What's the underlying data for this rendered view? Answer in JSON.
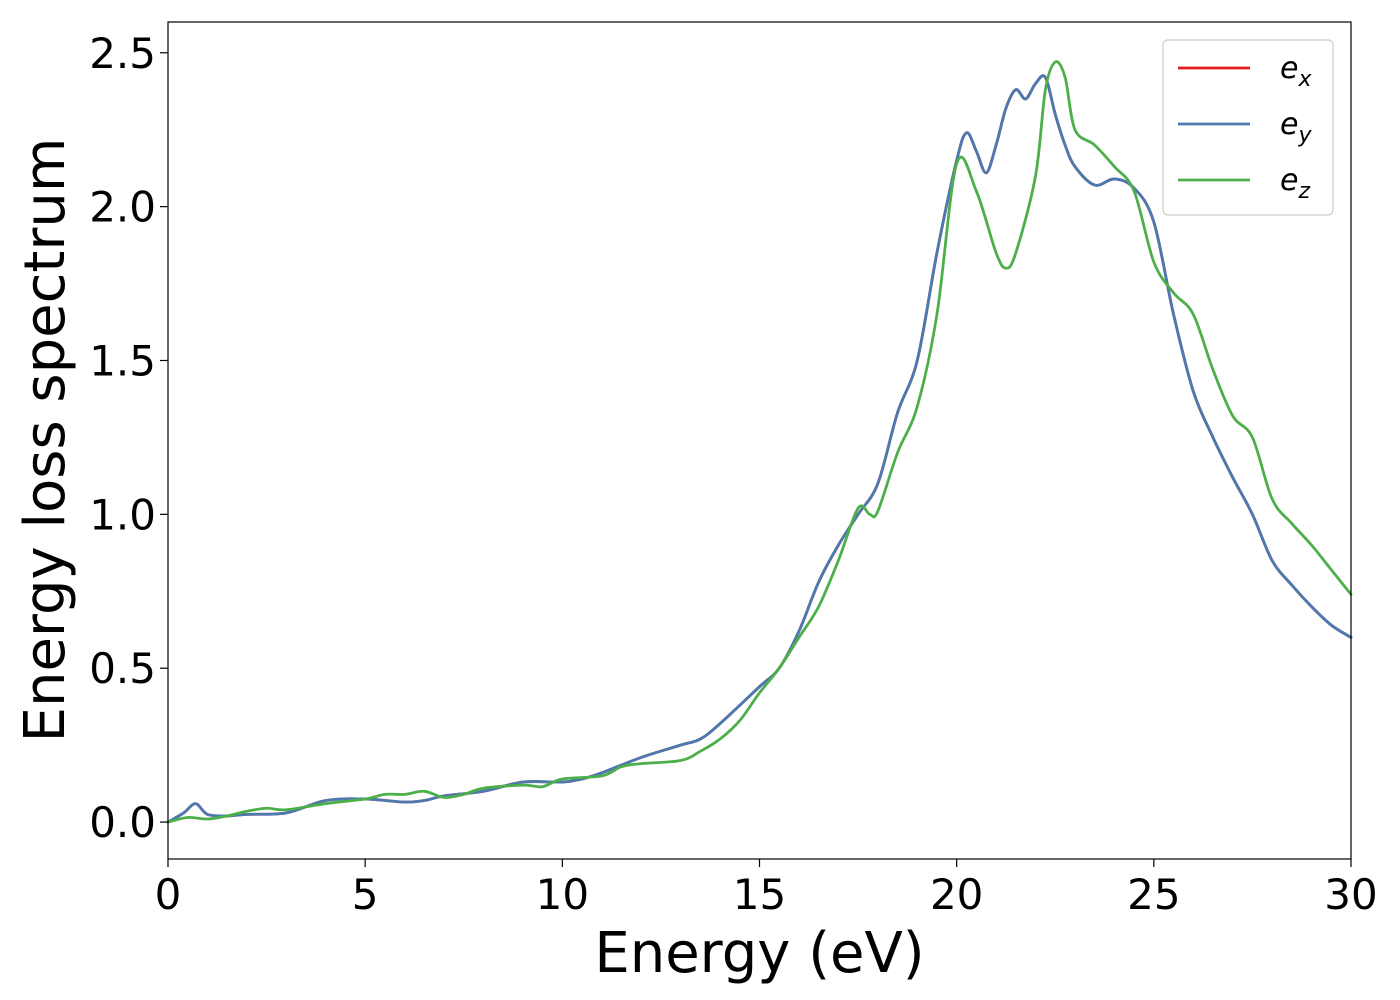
{
  "chart_data": {
    "type": "line",
    "title": "",
    "xlabel": "Energy (eV)",
    "ylabel": "Energy loss spectrum",
    "xlim": [
      0,
      30
    ],
    "ylim": [
      -0.12,
      2.6
    ],
    "xticks": [
      0,
      5,
      10,
      15,
      20,
      25,
      30
    ],
    "xtick_labels": [
      "0",
      "5",
      "10",
      "15",
      "20",
      "25",
      "30"
    ],
    "yticks": [
      0.0,
      0.5,
      1.0,
      1.5,
      2.0,
      2.5
    ],
    "ytick_labels": [
      "0.0",
      "0.5",
      "1.0",
      "1.5",
      "2.0",
      "2.5"
    ],
    "grid": false,
    "legend_position": "top-right",
    "series": [
      {
        "name": "e_x",
        "legend_base": "e",
        "legend_sub": "x",
        "color": "#e41a1c",
        "x": [
          0,
          0.4,
          0.7,
          1.0,
          1.5,
          2,
          3,
          4,
          5,
          6,
          6.5,
          7,
          8,
          9,
          10,
          10.5,
          11,
          12,
          13,
          13.5,
          14,
          15,
          15.5,
          16,
          16.5,
          17,
          17.5,
          18,
          18.5,
          19,
          19.5,
          20,
          20.25,
          20.5,
          20.75,
          21,
          21.25,
          21.5,
          21.75,
          22,
          22.25,
          22.5,
          22.75,
          23,
          23.5,
          24,
          24.5,
          25,
          25.5,
          26,
          26.5,
          27,
          27.5,
          28,
          28.5,
          29,
          29.5,
          30
        ],
        "y": [
          0.0,
          0.03,
          0.06,
          0.025,
          0.02,
          0.025,
          0.03,
          0.07,
          0.075,
          0.065,
          0.07,
          0.085,
          0.1,
          0.13,
          0.13,
          0.14,
          0.16,
          0.21,
          0.25,
          0.27,
          0.32,
          0.44,
          0.5,
          0.62,
          0.78,
          0.9,
          1.0,
          1.1,
          1.33,
          1.5,
          1.85,
          2.15,
          2.24,
          2.18,
          2.11,
          2.2,
          2.32,
          2.38,
          2.35,
          2.4,
          2.42,
          2.3,
          2.2,
          2.13,
          2.07,
          2.09,
          2.06,
          1.95,
          1.65,
          1.4,
          1.25,
          1.12,
          1.0,
          0.85,
          0.77,
          0.7,
          0.64,
          0.6
        ]
      },
      {
        "name": "e_y",
        "legend_base": "e",
        "legend_sub": "y",
        "color": "#4a7ab0",
        "x": [
          0,
          0.4,
          0.7,
          1.0,
          1.5,
          2,
          3,
          4,
          5,
          6,
          6.5,
          7,
          8,
          9,
          10,
          10.5,
          11,
          12,
          13,
          13.5,
          14,
          15,
          15.5,
          16,
          16.5,
          17,
          17.5,
          18,
          18.5,
          19,
          19.5,
          20,
          20.25,
          20.5,
          20.75,
          21,
          21.25,
          21.5,
          21.75,
          22,
          22.25,
          22.5,
          22.75,
          23,
          23.5,
          24,
          24.5,
          25,
          25.5,
          26,
          26.5,
          27,
          27.5,
          28,
          28.5,
          29,
          29.5,
          30
        ],
        "y": [
          0.0,
          0.03,
          0.06,
          0.025,
          0.02,
          0.025,
          0.03,
          0.07,
          0.075,
          0.065,
          0.07,
          0.085,
          0.1,
          0.13,
          0.13,
          0.14,
          0.16,
          0.21,
          0.25,
          0.27,
          0.32,
          0.44,
          0.5,
          0.62,
          0.78,
          0.9,
          1.0,
          1.1,
          1.33,
          1.5,
          1.85,
          2.15,
          2.24,
          2.18,
          2.11,
          2.2,
          2.32,
          2.38,
          2.35,
          2.4,
          2.42,
          2.3,
          2.2,
          2.13,
          2.07,
          2.09,
          2.06,
          1.95,
          1.65,
          1.4,
          1.25,
          1.12,
          1.0,
          0.85,
          0.77,
          0.7,
          0.64,
          0.6
        ]
      },
      {
        "name": "e_z",
        "legend_base": "e",
        "legend_sub": "z",
        "color": "#4daf4a",
        "x": [
          0,
          0.5,
          1.0,
          1.5,
          2,
          2.5,
          3,
          4,
          5,
          5.5,
          6,
          6.5,
          7,
          7.5,
          8,
          9,
          9.5,
          10,
          11,
          11.5,
          12,
          13,
          13.5,
          14,
          14.5,
          15,
          15.5,
          16,
          16.5,
          17,
          17.5,
          17.8,
          18,
          18.5,
          19,
          19.5,
          20,
          20.5,
          21,
          21.25,
          21.5,
          22,
          22.25,
          22.5,
          22.75,
          23,
          23.5,
          24,
          24.5,
          25,
          25.5,
          26,
          26.5,
          27,
          27.5,
          28,
          28.5,
          29,
          29.5,
          30
        ],
        "y": [
          0.0,
          0.015,
          0.01,
          0.02,
          0.035,
          0.045,
          0.04,
          0.06,
          0.075,
          0.09,
          0.09,
          0.1,
          0.08,
          0.09,
          0.11,
          0.12,
          0.115,
          0.14,
          0.15,
          0.18,
          0.19,
          0.2,
          0.23,
          0.27,
          0.33,
          0.42,
          0.5,
          0.6,
          0.7,
          0.85,
          1.02,
          1.0,
          1.01,
          1.2,
          1.35,
          1.65,
          2.14,
          2.05,
          1.85,
          1.8,
          1.85,
          2.1,
          2.38,
          2.47,
          2.42,
          2.25,
          2.2,
          2.13,
          2.05,
          1.82,
          1.72,
          1.65,
          1.47,
          1.32,
          1.25,
          1.05,
          0.97,
          0.9,
          0.82,
          0.74
        ]
      }
    ]
  }
}
